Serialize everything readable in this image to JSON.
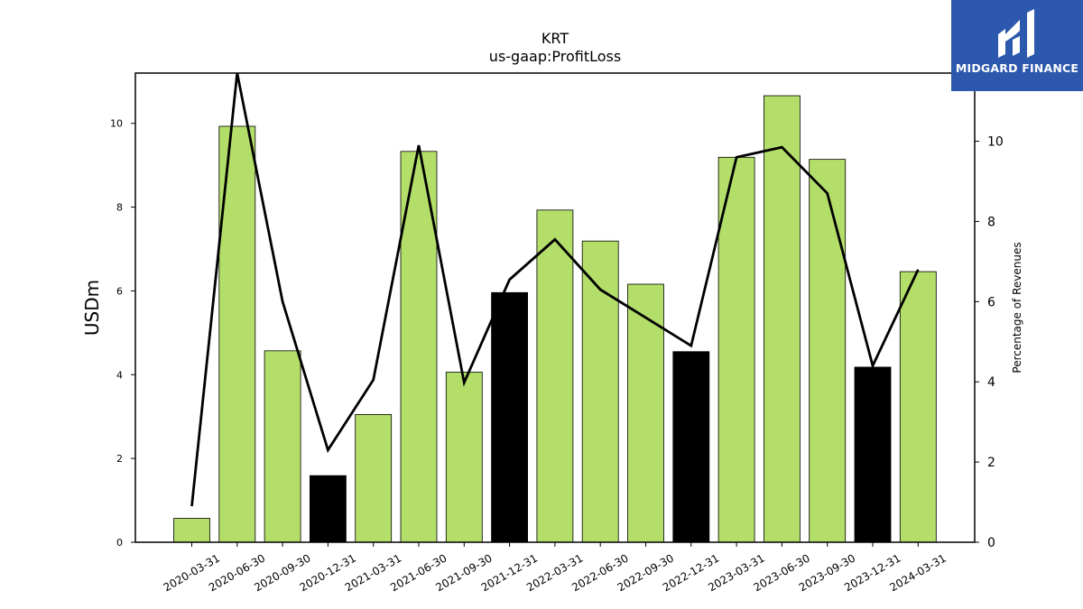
{
  "chart_data": {
    "type": "bar",
    "title": "KRT",
    "subtitle": "us-gaap:ProfitLoss",
    "ylabel": "USDm",
    "y2label": "Percentage of Revenues",
    "categories": [
      "2020-03-31",
      "2020-06-30",
      "2020-09-30",
      "2020-12-31",
      "2021-03-31",
      "2021-06-30",
      "2021-09-30",
      "2021-12-31",
      "2022-03-31",
      "2022-06-30",
      "2022-09-30",
      "2022-12-31",
      "2023-03-31",
      "2023-06-30",
      "2023-09-30",
      "2023-12-31",
      "2024-03-31"
    ],
    "series": [
      {
        "type": "bar",
        "values": [
          0.57,
          9.93,
          4.57,
          1.59,
          3.05,
          9.33,
          4.06,
          5.96,
          7.93,
          7.19,
          6.16,
          4.55,
          9.19,
          10.66,
          9.14,
          4.18,
          6.46
        ],
        "highlight": [
          false,
          false,
          false,
          true,
          false,
          false,
          false,
          true,
          false,
          false,
          false,
          true,
          false,
          false,
          false,
          true,
          false
        ],
        "color": "#b3de69",
        "highlight_color": "#000000"
      },
      {
        "type": "line",
        "axis": "right",
        "values": [
          0.9,
          11.7,
          6.0,
          2.3,
          4.05,
          9.9,
          3.98,
          6.55,
          7.55,
          6.3,
          5.6,
          4.9,
          9.6,
          9.85,
          8.7,
          4.4,
          6.8
        ],
        "color": "#000000"
      }
    ],
    "ylim": [
      0,
      11.2
    ],
    "y2lim": [
      0,
      11.7
    ],
    "yticks": [
      0,
      2,
      4,
      6,
      8,
      10
    ],
    "y2ticks": [
      0,
      2,
      4,
      6,
      8,
      10
    ]
  },
  "logo": {
    "text": "MIDGARD FINANCE",
    "color": "#2c58ad"
  }
}
